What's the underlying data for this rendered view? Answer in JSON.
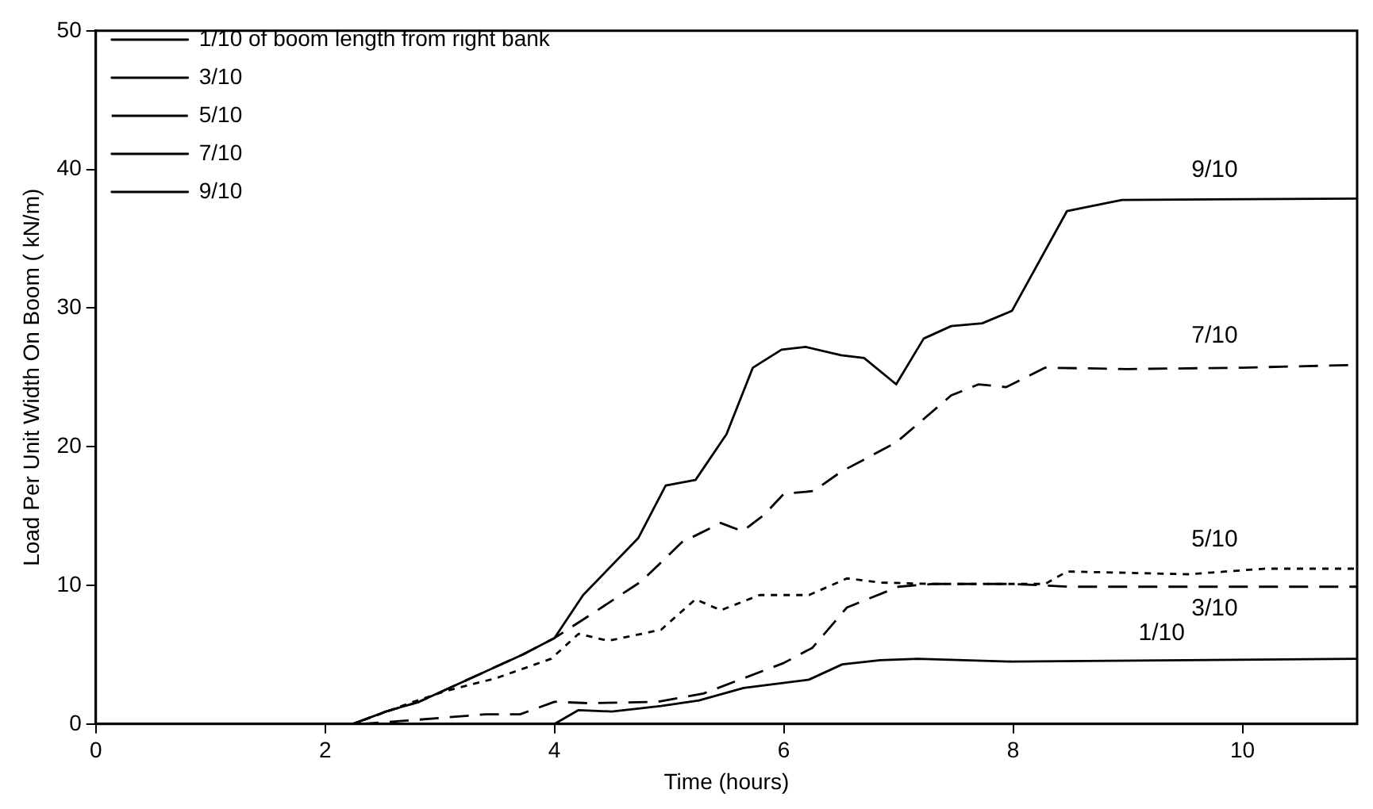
{
  "chart_data": {
    "type": "line",
    "xlabel": "Time (hours)",
    "ylabel": "Load Per Unit Width On Boom ( kN/m)",
    "xlim": [
      0,
      11
    ],
    "xticks": [
      0,
      2,
      4,
      6,
      8,
      10
    ],
    "ylim": [
      0,
      50
    ],
    "yticks": [
      0,
      10,
      20,
      30,
      40,
      50
    ],
    "grid": false,
    "legend": "top left",
    "marker": "none",
    "series": [
      {
        "name": "1/10 of boom length from right bank",
        "color": "#000000",
        "line_style": "solid",
        "x": [
          0,
          4,
          4.21,
          4.5,
          4.93,
          5.26,
          5.65,
          6.22,
          6.51,
          6.84,
          7.17,
          7.99,
          9.5,
          11
        ],
        "values": [
          0,
          0,
          1.0,
          0.9,
          1.3,
          1.7,
          2.6,
          3.2,
          4.3,
          4.6,
          4.7,
          4.5,
          4.6,
          4.7
        ]
      },
      {
        "name": "3/10",
        "color": "#000000",
        "line_style": "dashed",
        "x": [
          2.3,
          2.8,
          3.4,
          3.7,
          4,
          4.3,
          4.9,
          5.3,
          5.65,
          6,
          6.25,
          6.55,
          7,
          7.3,
          8,
          8.5,
          11
        ],
        "values": [
          0,
          0.3,
          0.7,
          0.7,
          1.6,
          1.5,
          1.6,
          2.2,
          3.3,
          4.4,
          5.5,
          8.4,
          9.9,
          10.1,
          10.1,
          9.9,
          9.9
        ]
      },
      {
        "name": "5/10",
        "color": "#000000",
        "line_style": "dotted",
        "x": [
          2.24,
          2.77,
          3.06,
          3.49,
          3.97,
          4.21,
          4.47,
          4.93,
          5.23,
          5.45,
          5.79,
          6.22,
          6.55,
          6.84,
          7.31,
          8.28,
          8.47,
          9.53,
          10.19,
          11
        ],
        "values": [
          0,
          1.6,
          2.4,
          3.3,
          4.7,
          6.5,
          6.0,
          6.8,
          9.0,
          8.2,
          9.3,
          9.3,
          10.5,
          10.2,
          10.1,
          10.1,
          11.0,
          10.8,
          11.2,
          11.2
        ]
      },
      {
        "name": "7/10",
        "color": "#000000",
        "line_style": "dashed",
        "x": [
          2.24,
          2.53,
          2.82,
          3.72,
          4.0,
          4.3,
          4.76,
          5.11,
          5.45,
          5.64,
          5.83,
          6.0,
          6.26,
          6.5,
          6.98,
          7.46,
          7.7,
          7.94,
          8.28,
          9,
          10,
          11
        ],
        "values": [
          0,
          0.9,
          1.6,
          5.0,
          6.2,
          7.8,
          10.3,
          13.1,
          14.5,
          13.9,
          15.1,
          16.6,
          16.8,
          18.2,
          20.3,
          23.7,
          24.5,
          24.3,
          25.7,
          25.6,
          25.7,
          25.9
        ]
      },
      {
        "name": "9/10",
        "color": "#000000",
        "line_style": "solid",
        "x": [
          2.24,
          2.53,
          2.82,
          3.72,
          4.0,
          4.25,
          4.73,
          4.97,
          5.23,
          5.5,
          5.73,
          5.98,
          6.19,
          6.5,
          6.7,
          6.98,
          7.22,
          7.46,
          7.73,
          7.99,
          8.47,
          8.95,
          11
        ],
        "values": [
          0,
          0.9,
          1.6,
          5.0,
          6.2,
          9.3,
          13.4,
          17.2,
          17.6,
          20.9,
          25.7,
          27.0,
          27.2,
          26.6,
          26.4,
          24.5,
          27.8,
          28.7,
          28.9,
          29.8,
          37.0,
          37.8,
          37.9
        ]
      }
    ],
    "annotations": [
      "1/10",
      "3/10",
      "5/10",
      "7/10",
      "9/10"
    ]
  }
}
